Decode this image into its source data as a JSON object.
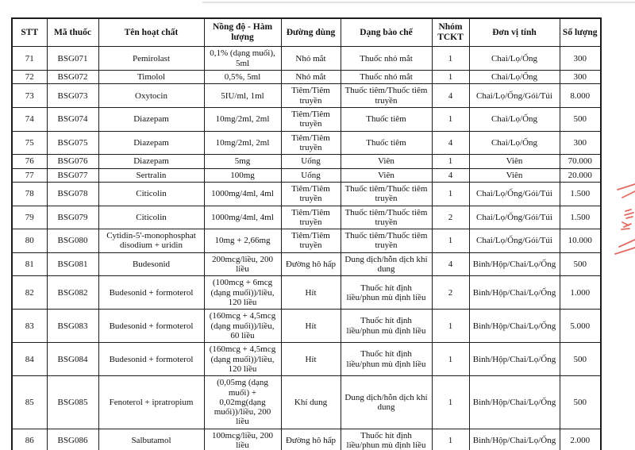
{
  "page": {
    "background": "#fefefe",
    "description_visible_content": "scanned drug procurement table page"
  },
  "table": {
    "headers": [
      "STT",
      "Mã thuốc",
      "Tên hoạt chất",
      "Nồng độ - Hàm lượng",
      "Đường dùng",
      "Dạng bào chế",
      "Nhóm TCKT",
      "Đơn vị tính",
      "Số lượng"
    ],
    "rows": [
      [
        "71",
        "BSG071",
        "Pemirolast",
        "0,1% (dạng muối), 5ml",
        "Nhỏ mắt",
        "Thuốc nhỏ mắt",
        "1",
        "Chai/Lọ/Ống",
        "300"
      ],
      [
        "72",
        "BSG072",
        "Timolol",
        "0,5%, 5ml",
        "Nhỏ mắt",
        "Thuốc nhỏ mắt",
        "1",
        "Chai/Lọ/Ống",
        "300"
      ],
      [
        "73",
        "BSG073",
        "Oxytocin",
        "5IU/ml, 1ml",
        "Tiêm/Tiêm truyền",
        "Thuốc tiêm/Thuốc tiêm truyền",
        "4",
        "Chai/Lọ/Ống/Gói/Túi",
        "8.000"
      ],
      [
        "74",
        "BSG074",
        "Diazepam",
        "10mg/2ml, 2ml",
        "Tiêm/Tiêm truyền",
        "Thuốc tiêm",
        "1",
        "Chai/Lọ/Ống",
        "500"
      ],
      [
        "75",
        "BSG075",
        "Diazepam",
        "10mg/2ml, 2ml",
        "Tiêm/Tiêm truyền",
        "Thuốc tiêm",
        "4",
        "Chai/Lọ/Ống",
        "300"
      ],
      [
        "76",
        "BSG076",
        "Diazepam",
        "5mg",
        "Uống",
        "Viên",
        "1",
        "Viên",
        "70.000"
      ],
      [
        "77",
        "BSG077",
        "Sertralin",
        "100mg",
        "Uống",
        "Viên",
        "4",
        "Viên",
        "20.000"
      ],
      [
        "78",
        "BSG078",
        "Citicolin",
        "1000mg/4ml, 4ml",
        "Tiêm/Tiêm truyền",
        "Thuốc tiêm/Thuốc tiêm truyền",
        "1",
        "Chai/Lọ/Ống/Gói/Túi",
        "1.500"
      ],
      [
        "79",
        "BSG079",
        "Citicolin",
        "1000mg/4ml, 4ml",
        "Tiêm/Tiêm truyền",
        "Thuốc tiêm/Thuốc tiêm truyền",
        "2",
        "Chai/Lọ/Ống/Gói/Túi",
        "1.500"
      ],
      [
        "80",
        "BSG080",
        "Cytidin-5'-monophosphat disodium + uridin",
        "10mg + 2,66mg",
        "Tiêm/Tiêm truyền",
        "Thuốc tiêm/Thuốc tiêm truyền",
        "1",
        "Chai/Lọ/Ống/Gói/Túi",
        "10.000"
      ],
      [
        "81",
        "BSG081",
        "Budesonid",
        "200mcg/liều, 200 liều",
        "Đường hô hấp",
        "Dung dịch/hỗn dịch khí dung",
        "4",
        "Bình/Hộp/Chai/Lọ/Ống",
        "500"
      ],
      [
        "82",
        "BSG082",
        "Budesonid + formoterol",
        "(100mcg + 6mcg (dạng muối))/liều, 120 liều",
        "Hít",
        "Thuốc hít định liều/phun mù định liều",
        "2",
        "Bình/Hộp/Chai/Lọ/Ống",
        "1.000"
      ],
      [
        "83",
        "BSG083",
        "Budesonid + formoterol",
        "(160mcg + 4,5mcg (dạng muối))/liều, 60 liều",
        "Hít",
        "Thuốc hít định liều/phun mù định liều",
        "1",
        "Bình/Hộp/Chai/Lọ/Ống",
        "5.000"
      ],
      [
        "84",
        "BSG084",
        "Budesonid + formoterol",
        "(160mcg + 4,5mcg (dạng muối))/liều, 120 liều",
        "Hít",
        "Thuốc hít định liều/phun mù định liều",
        "1",
        "Bình/Hộp/Chai/Lọ/Ống",
        "500"
      ],
      [
        "85",
        "BSG085",
        "Fenoterol + ipratropium",
        "(0,05mg (dạng muối) + 0,02mg(dạng muối))/liều, 200 liều",
        "Khí dung",
        "Dung dịch/hỗn dịch khí dung",
        "1",
        "Bình/Hộp/Chai/Lọ/Ống",
        "500"
      ],
      [
        "86",
        "BSG086",
        "Salbutamol",
        "100mcg/liều, 200 liều",
        "Đường hô hấp",
        "Thuốc hít định liều/phun mù định liều",
        "1",
        "Bình/Hộp/Chai/Lọ/Ống",
        "2.000"
      ]
    ]
  },
  "annotations": {
    "red_pen_color": "#dd544c",
    "red_pen_note": "handwritten red pen marks, cut off at right page edge"
  }
}
